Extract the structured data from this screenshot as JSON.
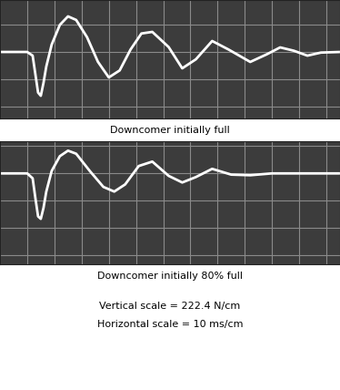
{
  "chart_data": [
    {
      "type": "line",
      "title": "Downcomer initially full",
      "x": [
        0,
        10,
        12,
        13,
        14,
        15,
        16,
        17,
        19,
        22,
        25,
        28,
        32,
        36,
        40,
        44,
        48,
        52,
        56,
        62,
        67,
        72,
        78,
        84,
        92,
        98,
        103,
        108,
        113,
        118,
        125
      ],
      "values": [
        0,
        0,
        -30,
        -180,
        -330,
        -356,
        -250,
        -120,
        60,
        220,
        289,
        260,
        120,
        -80,
        -207,
        -150,
        20,
        150,
        163,
        40,
        -133,
        -60,
        89,
        20,
        -81,
        -20,
        37,
        10,
        -30,
        -5,
        0
      ],
      "color": "#ffffff",
      "xlim": [
        0,
        125
      ],
      "ylim": [
        -541,
        422
      ],
      "xticks": [
        0,
        10,
        20,
        30,
        40,
        50,
        60,
        70,
        80,
        90,
        100,
        110,
        120
      ],
      "yticks": [
        -444.8,
        -222.4,
        0,
        222.4
      ],
      "grid": true,
      "tick_labels": false
    },
    {
      "type": "line",
      "title": "Downcomer initially 80% full",
      "x": [
        0,
        10,
        12,
        13,
        14,
        15,
        16,
        17,
        19,
        22,
        25,
        28,
        33,
        38,
        42,
        46,
        51,
        56,
        62,
        67,
        72,
        78,
        85,
        92,
        100,
        110,
        125
      ],
      "values": [
        0,
        0,
        -40,
        -200,
        -350,
        -370,
        -280,
        -150,
        20,
        140,
        185,
        160,
        20,
        -110,
        -148,
        -90,
        60,
        96,
        -20,
        -74,
        -30,
        37,
        -10,
        -15,
        0,
        0,
        0
      ],
      "color": "#ffffff",
      "xlim": [
        0,
        125
      ],
      "ylim": [
        -741,
        259
      ],
      "xticks": [
        0,
        10,
        20,
        30,
        40,
        50,
        60,
        70,
        80,
        90,
        100,
        110,
        120
      ],
      "yticks": [
        -667.2,
        -444.8,
        -222.4,
        0,
        222.4
      ],
      "grid": true,
      "tick_labels": false
    }
  ],
  "annotations": [
    "Vertical scale = 222.4 N/cm",
    "Horizontal scale = 10 ms/cm"
  ]
}
